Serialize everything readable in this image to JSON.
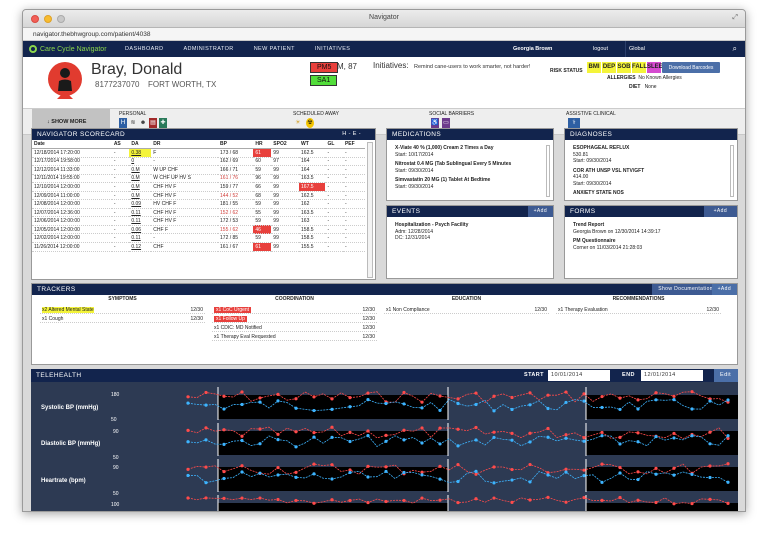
{
  "window": {
    "title": "Navigator",
    "url": "navigator.thebhwgroup.com/patient/4038"
  },
  "nav": {
    "logo_text": "Care Cycle Navigator",
    "items": [
      "DASHBOARD",
      "ADMINISTRATOR",
      "NEW PATIENT",
      "INITIATIVES"
    ],
    "user": "Georgia Brown",
    "logout": "logout",
    "search_placeholder": "Global"
  },
  "patient": {
    "name": "Bray, Donald",
    "phone": "8177237070",
    "city": "FORT WORTH, TX",
    "badges": [
      "PM5",
      "SA1"
    ],
    "sex_age": "M, 87",
    "initiatives_label": "Initiatives:",
    "initiatives_text": "Remind cane-users to work smarter, not harder!",
    "risk_label": "RISK STATUS",
    "risk_badges": [
      {
        "label": "BMI",
        "color": "#f4f43a"
      },
      {
        "label": "DEP",
        "color": "#f4f43a"
      },
      {
        "label": "SOB",
        "color": "#f4f43a"
      },
      {
        "label": "FALL",
        "color": "#f4f43a"
      },
      {
        "label": "SLEEP",
        "color": "#d54bd0"
      }
    ],
    "allergies_label": "ALLERGIES",
    "allergies": "No Known Allergies",
    "diet_label": "DIET",
    "diet": "None",
    "download_label": "Download Barcodes"
  },
  "strip": {
    "show_more": "SHOW MORE",
    "categories": [
      "PERSONAL",
      "SCHEDULED AWAY",
      "SOCIAL BARRIERS",
      "ASSISTIVE CLINICAL"
    ]
  },
  "scorecard": {
    "title": "NAVIGATOR SCORECARD",
    "toggle": "H - E -",
    "columns": [
      "Date",
      "AS",
      "DA",
      "DR",
      "BP",
      "HR",
      "SPO2",
      "WT",
      "GL",
      "PEF"
    ],
    "rows": [
      [
        "12/18/2014 17:20:00",
        "-",
        "0.38",
        "F",
        "173 / 68",
        "61",
        "99",
        "162.5",
        "-",
        "-"
      ],
      [
        "12/17/2014 19:58:00",
        "-",
        "0",
        "-",
        "162 / 69",
        "60",
        "97",
        "164",
        "-",
        "-"
      ],
      [
        "12/12/2014 11:33:00",
        "-",
        "0.M",
        "W UP CHF",
        "166 / 71",
        "59",
        "99",
        "164",
        "-",
        "-"
      ],
      [
        "12/11/2014 19:55:00",
        "-",
        "0.M",
        "W CHF UP HV S",
        "161 / 76",
        "96",
        "99",
        "163.5",
        "-",
        "-"
      ],
      [
        "12/10/2014 12:00:00",
        "-",
        "0.M",
        "CHF HV F",
        "159 / 77",
        "66",
        "99",
        "167.5",
        "-",
        "-"
      ],
      [
        "12/09/2014 11:00:00",
        "-",
        "0.M",
        "CHF HV F",
        "144 / 52",
        "68",
        "99",
        "162.5",
        "-",
        "-"
      ],
      [
        "12/08/2014 12:00:00",
        "-",
        "0.09",
        "HV CHF F",
        "181 / 55",
        "59",
        "99",
        "162",
        "-",
        "-"
      ],
      [
        "12/07/2014 12:36:00",
        "-",
        "0.11",
        "CHF HV F",
        "152 / 62",
        "55",
        "99",
        "163.5",
        "-",
        "-"
      ],
      [
        "12/06/2014 12:00:00",
        "-",
        "0.11",
        "CHF HV F",
        "172 / 53",
        "59",
        "99",
        "163",
        "-",
        "-"
      ],
      [
        "12/05/2014 12:00:00",
        "-",
        "0.06",
        "CHF F",
        "155 / 62",
        "46",
        "99",
        "158.5",
        "-",
        "-"
      ],
      [
        "12/02/2014 12:00:00",
        "-",
        "0.11",
        "-",
        "172 / 85",
        "59",
        "99",
        "158.5",
        "-",
        "-"
      ],
      [
        "11/26/2014 12:00:00",
        "-",
        "0.12",
        "CHF",
        "161 / 67",
        "61",
        "99",
        "155.5",
        "-",
        "-"
      ]
    ]
  },
  "medications": {
    "title": "MEDICATIONS",
    "items": [
      {
        "name": "X-Viate 40 % (1,000) Cream 2 Times a Day",
        "start": "Start: 10/17/2014"
      },
      {
        "name": "Nitrostat 0.4 MG (Tab Sublingual Every 5 Minutes",
        "start": "Start: 09/30/2014"
      },
      {
        "name": "Simvastatin 20 MG (1) Tablet At Bedtime",
        "start": "Start: 09/30/2014"
      }
    ]
  },
  "diagnoses": {
    "title": "DIAGNOSES",
    "items": [
      {
        "name": "ESOPHAGEAL REFLUX",
        "code": "530.81",
        "start": "Start: 09/30/2014"
      },
      {
        "name": "COR ATH UNSP VSL NTV/GFT",
        "code": "414.00",
        "start": "Start: 09/30/2014"
      },
      {
        "name": "ANXIETY STATE NOS",
        "code": "",
        "start": ""
      }
    ]
  },
  "events": {
    "title": "EVENTS",
    "add": "+Add",
    "items": [
      {
        "name": "Hospitalization - Psych Facility",
        "adm": "Adm: 12/28/2014",
        "dc": "DC: 12/31/2014"
      }
    ]
  },
  "forms": {
    "title": "FORMS",
    "add": "+Add",
    "items": [
      {
        "name": "Trend Report",
        "meta": "Georgia Brown on 12/30/2014 14:39:17"
      },
      {
        "name": "PM Questionnaire",
        "meta": "Corner on 11/03/2014 21:28:03"
      }
    ]
  },
  "trackers": {
    "title": "TRACKERS",
    "show_doc": "Show Documentation",
    "add": "+Add",
    "symptoms": {
      "title": "SYMPTOMS",
      "items": [
        {
          "label": "x2 Altered Mental State",
          "n": "12/30",
          "hl": "yel"
        },
        {
          "label": "x1 Cough",
          "n": "12/30",
          "hl": ""
        }
      ]
    },
    "coordination": {
      "title": "COORDINATION",
      "items": [
        {
          "label": "x1 CoC Urgent",
          "n": "12/30",
          "hl": "red"
        },
        {
          "label": "x1 Follow Up",
          "n": "12/30",
          "hl": "red"
        },
        {
          "label": "x1 CDIC: MD Notified",
          "n": "12/30",
          "hl": ""
        },
        {
          "label": "x1 Therapy Eval Requested",
          "n": "12/30",
          "hl": ""
        }
      ]
    },
    "education": {
      "title": "EDUCATION",
      "items": [
        {
          "label": "x1 Non Compliance",
          "n": "12/30",
          "hl": ""
        }
      ]
    },
    "recommendations": {
      "title": "RECOMMENDATIONS",
      "items": [
        {
          "label": "x1 Therapy Evaluation",
          "n": "12/30",
          "hl": ""
        }
      ]
    }
  },
  "telehealth": {
    "title": "TELEHEALTH",
    "start_label": "START",
    "start": "10/01/2014",
    "end_label": "END",
    "end": "12/01/2014",
    "edit": "Edit",
    "panels": [
      {
        "label": "Systolic BP (mmHg)",
        "ticks": [
          "180",
          "50"
        ]
      },
      {
        "label": "Diastolic BP (mmHg)",
        "ticks": [
          "90",
          "50"
        ]
      },
      {
        "label": "Heartrate (bpm)",
        "ticks": [
          "90",
          "50"
        ]
      },
      {
        "label": "",
        "ticks": [
          "100"
        ]
      }
    ]
  }
}
